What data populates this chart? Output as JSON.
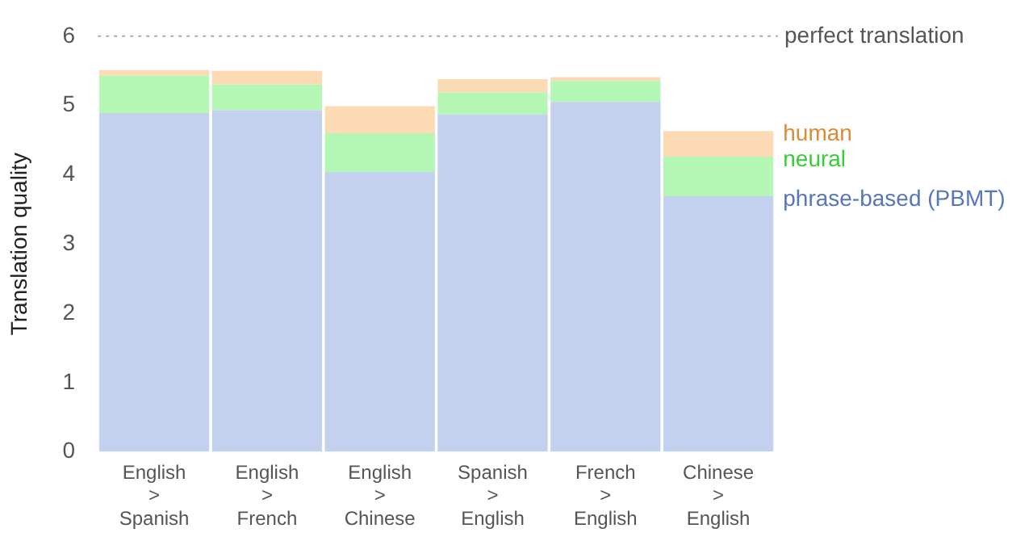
{
  "chart_data": {
    "type": "bar",
    "stacked": true,
    "ylabel": "Translation quality",
    "categories": [
      "English > Spanish",
      "English > French",
      "English > Chinese",
      "Spanish > English",
      "French > English",
      "Chinese > English"
    ],
    "series": [
      {
        "name": "phrase-based (PBMT)",
        "color": "#c3d1ee",
        "values": [
          4.89,
          4.93,
          4.04,
          4.87,
          5.05,
          3.69
        ]
      },
      {
        "name": "neural",
        "color": "#b4f7b4",
        "values": [
          0.54,
          0.37,
          0.56,
          0.32,
          0.3,
          0.57
        ]
      },
      {
        "name": "human",
        "color": "#fcdab4",
        "values": [
          0.08,
          0.2,
          0.39,
          0.19,
          0.06,
          0.37
        ]
      }
    ],
    "ylim": [
      0,
      6
    ],
    "yticks": [
      0,
      1,
      2,
      3,
      4,
      5,
      6
    ],
    "grid": false,
    "ref_lines": [
      {
        "axis": "y",
        "value": 6,
        "label": "perfect translation",
        "color": "#aaaaaa",
        "line_style": "dotted"
      }
    ]
  }
}
